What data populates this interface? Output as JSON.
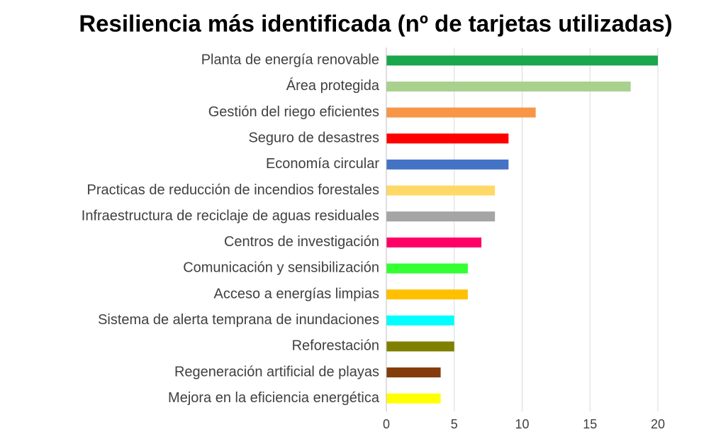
{
  "chart_data": {
    "type": "bar",
    "orientation": "horizontal",
    "title": "Resiliencia más identificada (nº de tarjetas utilizadas)",
    "categories": [
      "Planta de energía renovable",
      "Área protegida",
      "Gestión del riego eficientes",
      "Seguro de desastres",
      "Economía circular",
      "Practicas de reducción de incendios forestales",
      "Infraestructura de reciclaje de aguas residuales",
      "Centros de investigación",
      "Comunicación y sensibilización",
      "Acceso a energías limpias",
      "Sistema de alerta temprana de inundaciones",
      "Reforestación",
      "Regeneración artificial de playas",
      "Mejora en la eficiencia energética"
    ],
    "values": [
      20,
      18,
      11,
      9,
      9,
      8,
      8,
      7,
      6,
      6,
      5,
      5,
      4,
      4
    ],
    "colors": [
      "#1aa64a",
      "#a9d18e",
      "#f79646",
      "#ff0000",
      "#4472c4",
      "#ffd966",
      "#a5a5a5",
      "#ff0066",
      "#33ff33",
      "#ffc000",
      "#00ffff",
      "#808000",
      "#843c0c",
      "#ffff00"
    ],
    "xlim": [
      0,
      20
    ],
    "xticks": [
      0,
      5,
      10,
      15,
      20
    ],
    "grid": true
  }
}
